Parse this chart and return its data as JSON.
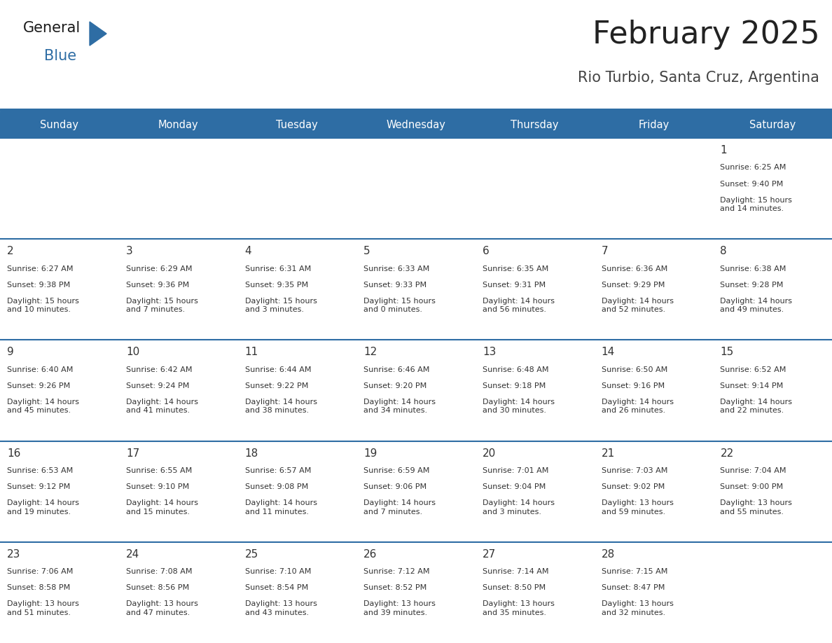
{
  "title": "February 2025",
  "subtitle": "Rio Turbio, Santa Cruz, Argentina",
  "days_of_week": [
    "Sunday",
    "Monday",
    "Tuesday",
    "Wednesday",
    "Thursday",
    "Friday",
    "Saturday"
  ],
  "header_bg": "#2E6DA4",
  "header_text": "#FFFFFF",
  "cell_bg_odd": "#EFEFEF",
  "cell_bg_even": "#FFFFFF",
  "separator_color": "#2E6DA4",
  "text_color": "#333333",
  "day_num_color": "#333333",
  "title_color": "#222222",
  "subtitle_color": "#444444",
  "logo_general_color": "#1A1A1A",
  "logo_blue_color": "#2E6DA4",
  "cal_data": [
    [
      null,
      null,
      null,
      null,
      null,
      null,
      {
        "day": 1,
        "sunrise": "6:25 AM",
        "sunset": "9:40 PM",
        "daylight": "15 hours\nand 14 minutes."
      }
    ],
    [
      {
        "day": 2,
        "sunrise": "6:27 AM",
        "sunset": "9:38 PM",
        "daylight": "15 hours\nand 10 minutes."
      },
      {
        "day": 3,
        "sunrise": "6:29 AM",
        "sunset": "9:36 PM",
        "daylight": "15 hours\nand 7 minutes."
      },
      {
        "day": 4,
        "sunrise": "6:31 AM",
        "sunset": "9:35 PM",
        "daylight": "15 hours\nand 3 minutes."
      },
      {
        "day": 5,
        "sunrise": "6:33 AM",
        "sunset": "9:33 PM",
        "daylight": "15 hours\nand 0 minutes."
      },
      {
        "day": 6,
        "sunrise": "6:35 AM",
        "sunset": "9:31 PM",
        "daylight": "14 hours\nand 56 minutes."
      },
      {
        "day": 7,
        "sunrise": "6:36 AM",
        "sunset": "9:29 PM",
        "daylight": "14 hours\nand 52 minutes."
      },
      {
        "day": 8,
        "sunrise": "6:38 AM",
        "sunset": "9:28 PM",
        "daylight": "14 hours\nand 49 minutes."
      }
    ],
    [
      {
        "day": 9,
        "sunrise": "6:40 AM",
        "sunset": "9:26 PM",
        "daylight": "14 hours\nand 45 minutes."
      },
      {
        "day": 10,
        "sunrise": "6:42 AM",
        "sunset": "9:24 PM",
        "daylight": "14 hours\nand 41 minutes."
      },
      {
        "day": 11,
        "sunrise": "6:44 AM",
        "sunset": "9:22 PM",
        "daylight": "14 hours\nand 38 minutes."
      },
      {
        "day": 12,
        "sunrise": "6:46 AM",
        "sunset": "9:20 PM",
        "daylight": "14 hours\nand 34 minutes."
      },
      {
        "day": 13,
        "sunrise": "6:48 AM",
        "sunset": "9:18 PM",
        "daylight": "14 hours\nand 30 minutes."
      },
      {
        "day": 14,
        "sunrise": "6:50 AM",
        "sunset": "9:16 PM",
        "daylight": "14 hours\nand 26 minutes."
      },
      {
        "day": 15,
        "sunrise": "6:52 AM",
        "sunset": "9:14 PM",
        "daylight": "14 hours\nand 22 minutes."
      }
    ],
    [
      {
        "day": 16,
        "sunrise": "6:53 AM",
        "sunset": "9:12 PM",
        "daylight": "14 hours\nand 19 minutes."
      },
      {
        "day": 17,
        "sunrise": "6:55 AM",
        "sunset": "9:10 PM",
        "daylight": "14 hours\nand 15 minutes."
      },
      {
        "day": 18,
        "sunrise": "6:57 AM",
        "sunset": "9:08 PM",
        "daylight": "14 hours\nand 11 minutes."
      },
      {
        "day": 19,
        "sunrise": "6:59 AM",
        "sunset": "9:06 PM",
        "daylight": "14 hours\nand 7 minutes."
      },
      {
        "day": 20,
        "sunrise": "7:01 AM",
        "sunset": "9:04 PM",
        "daylight": "14 hours\nand 3 minutes."
      },
      {
        "day": 21,
        "sunrise": "7:03 AM",
        "sunset": "9:02 PM",
        "daylight": "13 hours\nand 59 minutes."
      },
      {
        "day": 22,
        "sunrise": "7:04 AM",
        "sunset": "9:00 PM",
        "daylight": "13 hours\nand 55 minutes."
      }
    ],
    [
      {
        "day": 23,
        "sunrise": "7:06 AM",
        "sunset": "8:58 PM",
        "daylight": "13 hours\nand 51 minutes."
      },
      {
        "day": 24,
        "sunrise": "7:08 AM",
        "sunset": "8:56 PM",
        "daylight": "13 hours\nand 47 minutes."
      },
      {
        "day": 25,
        "sunrise": "7:10 AM",
        "sunset": "8:54 PM",
        "daylight": "13 hours\nand 43 minutes."
      },
      {
        "day": 26,
        "sunrise": "7:12 AM",
        "sunset": "8:52 PM",
        "daylight": "13 hours\nand 39 minutes."
      },
      {
        "day": 27,
        "sunrise": "7:14 AM",
        "sunset": "8:50 PM",
        "daylight": "13 hours\nand 35 minutes."
      },
      {
        "day": 28,
        "sunrise": "7:15 AM",
        "sunset": "8:47 PM",
        "daylight": "13 hours\nand 32 minutes."
      },
      null
    ]
  ]
}
